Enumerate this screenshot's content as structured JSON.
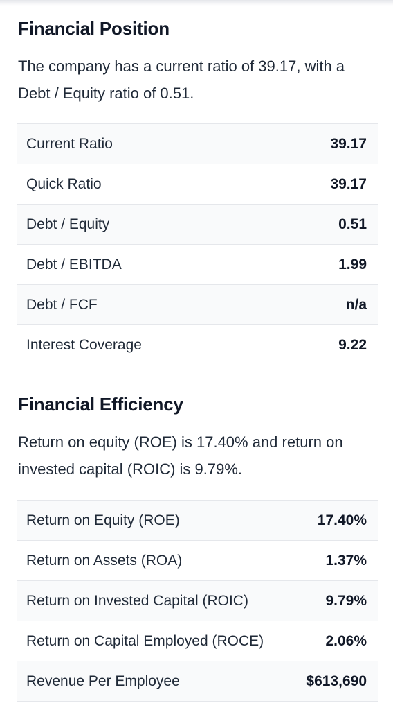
{
  "financial_position": {
    "title": "Financial Position",
    "description": "The company has a current ratio of 39.17, with a Debt / Equity ratio of 0.51.",
    "rows": [
      {
        "label": "Current Ratio",
        "value": "39.17"
      },
      {
        "label": "Quick Ratio",
        "value": "39.17"
      },
      {
        "label": "Debt / Equity",
        "value": "0.51"
      },
      {
        "label": "Debt / EBITDA",
        "value": "1.99"
      },
      {
        "label": "Debt / FCF",
        "value": "n/a"
      },
      {
        "label": "Interest Coverage",
        "value": "9.22"
      }
    ]
  },
  "financial_efficiency": {
    "title": "Financial Efficiency",
    "description": "Return on equity (ROE) is 17.40% and return on invested capital (ROIC) is 9.79%.",
    "rows": [
      {
        "label": "Return on Equity (ROE)",
        "value": "17.40%"
      },
      {
        "label": "Return on Assets (ROA)",
        "value": "1.37%"
      },
      {
        "label": "Return on Invested Capital (ROIC)",
        "value": "9.79%"
      },
      {
        "label": "Return on Capital Employed (ROCE)",
        "value": "2.06%"
      },
      {
        "label": "Revenue Per Employee",
        "value": "$613,690"
      }
    ]
  }
}
